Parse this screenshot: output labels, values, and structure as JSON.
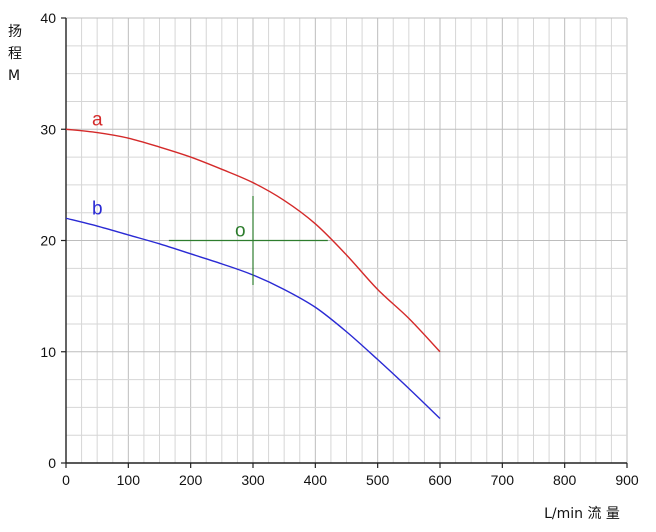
{
  "toolbar": {
    "image_icon": "image-icon",
    "dropdown_icon": "chevron-down-icon",
    "dropdown_glyph": "⌄"
  },
  "chart_data": {
    "type": "line",
    "xlabel": "L/min 流 量",
    "ylabel_lines": [
      "扬",
      "程",
      "M"
    ],
    "xlim": [
      0,
      900
    ],
    "ylim": [
      0,
      40
    ],
    "x_ticks": [
      0,
      100,
      200,
      300,
      400,
      500,
      600,
      700,
      800,
      900
    ],
    "y_ticks": [
      0,
      10,
      20,
      30,
      40
    ],
    "grid": true,
    "series": [
      {
        "name": "a",
        "color": "#d42a2a",
        "x": [
          0,
          50,
          100,
          150,
          200,
          250,
          300,
          350,
          400,
          450,
          500,
          550,
          600
        ],
        "y": [
          30,
          29.7,
          29.2,
          28.4,
          27.5,
          26.4,
          25.2,
          23.6,
          21.5,
          18.7,
          15.6,
          13.0,
          10
        ]
      },
      {
        "name": "b",
        "color": "#2a2ad4",
        "x": [
          0,
          50,
          100,
          150,
          200,
          250,
          300,
          350,
          400,
          450,
          500,
          550,
          600
        ],
        "y": [
          22,
          21.3,
          20.5,
          19.7,
          18.8,
          17.9,
          16.9,
          15.6,
          14.0,
          11.8,
          9.3,
          6.7,
          4
        ]
      }
    ],
    "annotations": [
      {
        "label": "o",
        "x": 300,
        "y": 20,
        "color": "#2e7d2e",
        "h_range": [
          165,
          420
        ],
        "v_range": [
          16,
          24
        ]
      }
    ]
  }
}
